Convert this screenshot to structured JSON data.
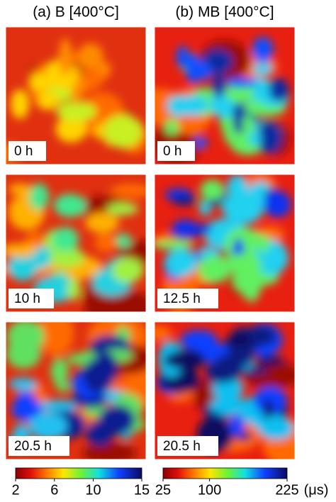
{
  "panels": [
    {
      "title": "(a) B [400°C]",
      "maps": [
        {
          "label": "0 h"
        },
        {
          "label": "10 h"
        },
        {
          "label": "20.5 h"
        }
      ],
      "colorbar": {
        "lim": [
          2,
          15
        ],
        "ticks": [
          2,
          6,
          10,
          15
        ]
      }
    },
    {
      "title": "(b) MB [400°C]",
      "maps": [
        {
          "label": "0 h"
        },
        {
          "label": "12.5 h"
        },
        {
          "label": "20.5 h"
        }
      ],
      "colorbar": {
        "lim": [
          25,
          225
        ],
        "ticks": [
          25,
          100,
          225
        ],
        "unit": "(μs)"
      }
    }
  ]
}
